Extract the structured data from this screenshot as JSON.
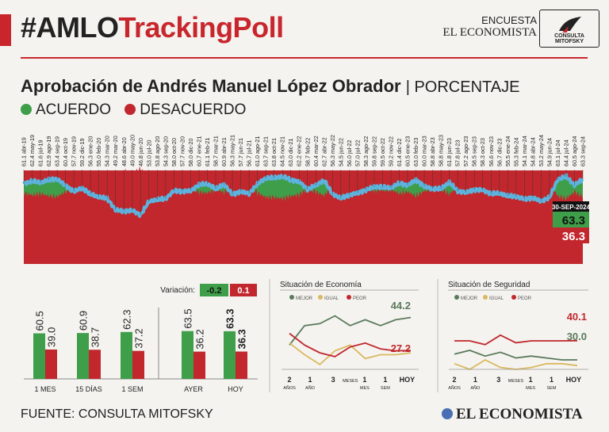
{
  "header": {
    "title_part1": "#AMLO",
    "title_part2": "TrackingPoll",
    "encuesta": "ENCUESTA",
    "publisher": "EL ECONOMISTA",
    "logo_text": "CONSULTA MITOFSKY"
  },
  "headline": {
    "main": "Aprobación de Andrés Manuel López Obrador",
    "unit": "| PORCENTAJE"
  },
  "legend": {
    "acuerdo": "ACUERDO",
    "desacuerdo": "DESACUERDO"
  },
  "colors": {
    "green": "#3f9e49",
    "red": "#c1272d",
    "blue": "#5db3dd",
    "yellow": "#d9b85f",
    "olive": "#5a7a5c"
  },
  "footer": {
    "source": "FUENTE: CONSULTA MITOFSKY",
    "logo": "EL ECONOMISTA"
  },
  "chart_data": [
    {
      "type": "area",
      "current_label": "30-SEP-2024",
      "current_acuerdo": "63.3",
      "current_desacuerdo": "36.3",
      "labels": [
        "61.1 abr-19",
        "62.4 may-19",
        "61.6 jul-19",
        "62.9 ago-19",
        "63.4 sep-19",
        "60.4 oct-19",
        "57.7 nov-19",
        "59.2 dic-19",
        "56.3 ene-20",
        "55.0 feb-20",
        "54.3 mar-20",
        "49.2 mar-20",
        "48.6 abr-20",
        "49.0 may-20",
        "46.8 jun-20",
        "53.0 jul-20",
        "53.8 ago-20",
        "54.3 sep-20",
        "58.0 oct-20",
        "57.7 nov-20",
        "58.0 dic-20",
        "60.7 ene-21",
        "61.1 feb-21",
        "58.7 mar-21",
        "60.9 abr-21",
        "56.3 may-21",
        "57.7 jun-21",
        "56.7 jul-21",
        "61.0 ago-21",
        "63.7 sep-21",
        "63.8 oct-21",
        "64.5 nov-21",
        "63.0 dic-21",
        "62.2 ene-22",
        "58.7 feb-22",
        "60.4 mar-22",
        "62.7 abr-22",
        "56.3 may-22",
        "54.5 jun-22",
        "56.0 jul-22",
        "57.0 jul-22",
        "58.3 ago-22",
        "59.8 sep-22",
        "59.5 oct-22",
        "59.2 nov-22",
        "61.4 dic-22",
        "60.5 ene-23",
        "63.0 feb-23",
        "60.0 mar-23",
        "58.8 abr-23",
        "58.8 may-23",
        "61.8 jun-23",
        "57.8 jul-23",
        "57.2 ago-23",
        "58.5 sep-23",
        "58.3 oct-23",
        "56.6 nov-23",
        "56.7 dic-23",
        "55.5 ene-24",
        "55.3 feb-24",
        "54.1 mar-24",
        "54.8 abr-24",
        "53.2 may-24",
        "54.9 jun-24",
        "63.1 jul-24",
        "64.4 jul-24",
        "60.5 ago-24",
        "63.3 sep-24"
      ],
      "acuerdo": [
        61.1,
        62.4,
        61.6,
        62.9,
        63.4,
        60.4,
        57.7,
        59.2,
        56.3,
        55.0,
        54.3,
        49.2,
        48.6,
        49.0,
        46.8,
        53.0,
        53.8,
        54.3,
        58.0,
        57.7,
        58.0,
        60.7,
        61.1,
        58.7,
        60.9,
        56.3,
        57.7,
        56.7,
        61.0,
        63.7,
        63.8,
        64.5,
        63.0,
        62.2,
        58.7,
        60.4,
        62.7,
        56.3,
        54.5,
        56.0,
        57.0,
        58.3,
        59.8,
        59.5,
        59.2,
        61.4,
        60.5,
        63.0,
        60.0,
        58.8,
        58.8,
        61.8,
        57.8,
        57.2,
        58.5,
        58.3,
        56.6,
        56.7,
        55.5,
        55.3,
        54.1,
        54.8,
        53.2,
        54.9,
        63.1,
        64.4,
        60.5,
        63.3
      ]
    },
    {
      "type": "bar",
      "variacion_label": "Variación:",
      "variacion_acuerdo": "-0.2",
      "variacion_desacuerdo": "0.1",
      "categories": [
        "1 MES",
        "15 DÍAS",
        "1 SEM",
        "AYER",
        "HOY"
      ],
      "series": [
        {
          "name": "ACUERDO",
          "values": [
            60.5,
            60.9,
            62.3,
            63.5,
            63.3
          ]
        },
        {
          "name": "DESACUERDO",
          "values": [
            39.0,
            38.7,
            37.2,
            36.2,
            36.3
          ]
        }
      ]
    },
    {
      "type": "line",
      "title": "Situación de Economía",
      "legend": [
        "MEJOR",
        "IGUAL",
        "PEOR"
      ],
      "x_labels": [
        "2 AÑOS",
        "1 AÑO",
        "3 MESES",
        "1 MES",
        "1 SEM",
        "HOY"
      ],
      "label_mejor": "44.2",
      "label_peor": "27.2",
      "series": [
        {
          "name": "MEJOR",
          "values": [
            30,
            40,
            41,
            45,
            40,
            43,
            40,
            43,
            44.2
          ]
        },
        {
          "name": "IGUAL",
          "values": [
            31,
            25,
            20,
            27,
            30,
            23,
            25,
            25,
            26
          ]
        },
        {
          "name": "PEOR",
          "values": [
            36,
            30,
            26,
            24,
            29,
            31,
            28,
            27,
            27.2
          ]
        }
      ]
    },
    {
      "type": "line",
      "title": "Situación de Seguridad",
      "legend": [
        "MEJOR",
        "IGUAL",
        "PEOR"
      ],
      "x_labels": [
        "2 AÑOS",
        "1 AÑO",
        "3 MESES",
        "1 MES",
        "1 SEM",
        "HOY"
      ],
      "label_peor": "40.1",
      "label_mejor": "30.0",
      "series": [
        {
          "name": "MEJOR",
          "values": [
            33,
            35,
            32,
            34,
            31,
            32,
            31,
            30,
            30
          ]
        },
        {
          "name": "IGUAL",
          "values": [
            28,
            25,
            30,
            26,
            25,
            26,
            28,
            28,
            27
          ]
        },
        {
          "name": "PEOR",
          "values": [
            40,
            40,
            38,
            43,
            39,
            40,
            40,
            40,
            40.1
          ]
        }
      ]
    }
  ]
}
